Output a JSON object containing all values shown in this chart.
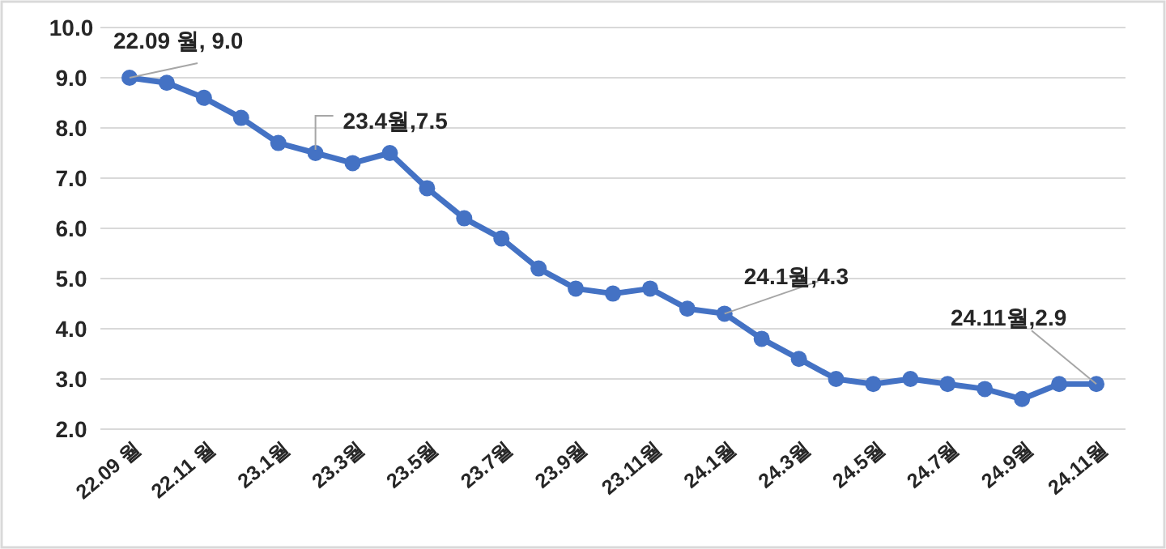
{
  "chart_data": {
    "type": "line",
    "categories": [
      "22.09 월",
      null,
      "22.11 월",
      null,
      "23.1월",
      null,
      "23.3월",
      null,
      "23.5월",
      null,
      "23.7월",
      null,
      "23.9월",
      null,
      "23.11월",
      null,
      "24.1월",
      null,
      "24.3월",
      null,
      "24.5월",
      null,
      "24.7월",
      null,
      "24.9월",
      null,
      "24.11월"
    ],
    "series": [
      {
        "color": "#4472c4",
        "values": [
          9.0,
          8.9,
          8.6,
          8.2,
          7.7,
          7.5,
          7.3,
          7.5,
          6.8,
          6.2,
          5.8,
          5.2,
          4.8,
          4.7,
          4.8,
          4.4,
          4.3,
          3.8,
          3.4,
          3.0,
          2.9,
          3.0,
          2.9,
          2.8,
          2.6,
          2.9,
          2.9
        ]
      }
    ],
    "ylim": [
      2,
      10
    ],
    "yticks": [
      {
        "value": 2,
        "label": "2.0"
      },
      {
        "value": 3,
        "label": "3.0"
      },
      {
        "value": 4,
        "label": "4.0"
      },
      {
        "value": 5,
        "label": "5.0"
      },
      {
        "value": 6,
        "label": "6.0"
      },
      {
        "value": 7,
        "label": "7.0"
      },
      {
        "value": 8,
        "label": "8.0"
      },
      {
        "value": 9,
        "label": "9.0"
      },
      {
        "value": 10,
        "label": "10.0"
      }
    ],
    "grid": "y",
    "marker": "circle",
    "line_style": "solid",
    "annotations": [
      {
        "text": "22.09 월, 9.0",
        "x": "22.09 월",
        "y": 9.0
      },
      {
        "text": "23.4월,7.5",
        "y": 7.5
      },
      {
        "text": "24.1월,4.3",
        "x": "24.1월",
        "y": 4.3
      },
      {
        "text": "24.11월,2.9",
        "x": "24.11월",
        "y": 2.9
      }
    ]
  }
}
